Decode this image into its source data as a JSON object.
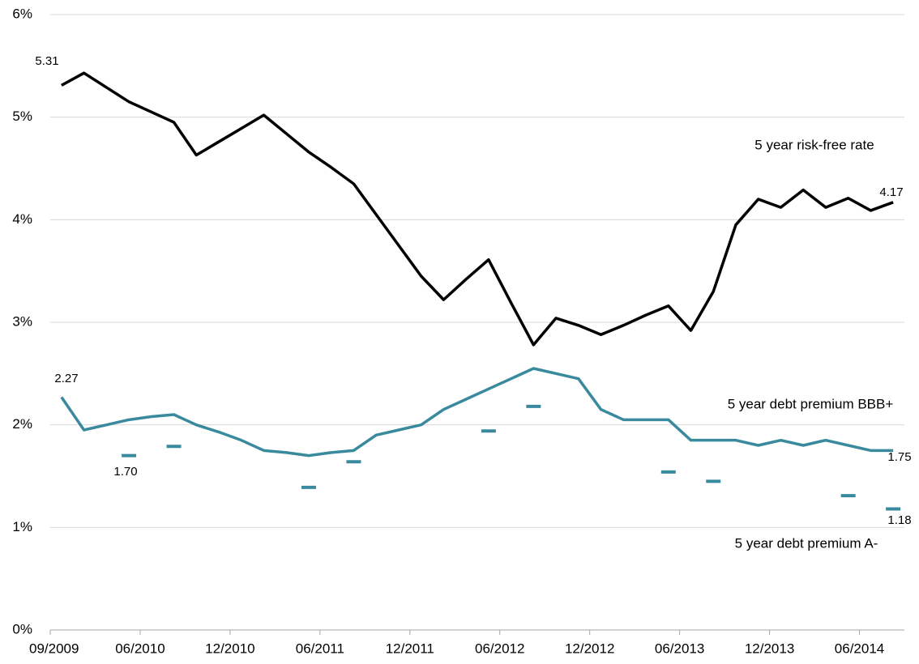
{
  "chart_data": {
    "type": "line",
    "categories": [
      "09/2009",
      null,
      null,
      null,
      "06/2010",
      null,
      null,
      null,
      "12/2010",
      null,
      null,
      null,
      "06/2011",
      null,
      null,
      null,
      "12/2011",
      null,
      null,
      null,
      "06/2012",
      null,
      null,
      null,
      "12/2012",
      null,
      null,
      null,
      "06/2013",
      null,
      null,
      null,
      "12/2013",
      null,
      null,
      null,
      "06/2014",
      null
    ],
    "series": [
      {
        "name": "5 year risk-free rate",
        "color": "#000000",
        "values": [
          5.31,
          5.43,
          5.29,
          5.15,
          5.05,
          4.95,
          4.63,
          4.76,
          4.89,
          5.02,
          4.84,
          4.66,
          4.51,
          4.35,
          4.05,
          3.75,
          3.45,
          3.22,
          3.42,
          3.61,
          3.19,
          2.78,
          3.04,
          2.97,
          2.88,
          2.97,
          3.07,
          3.16,
          2.92,
          3.3,
          3.95,
          4.2,
          4.12,
          4.29,
          4.12,
          4.21,
          4.09,
          4.17
        ],
        "value_labels": [
          "5.31",
          null,
          null,
          null,
          null,
          null,
          null,
          null,
          null,
          null,
          null,
          null,
          null,
          null,
          null,
          null,
          null,
          null,
          null,
          null,
          null,
          null,
          null,
          null,
          null,
          null,
          null,
          null,
          null,
          null,
          null,
          null,
          null,
          null,
          null,
          null,
          null,
          "4.17"
        ]
      },
      {
        "name": "5 year debt premium BBB+",
        "color": "#3a8a9e",
        "values": [
          2.27,
          1.95,
          2.0,
          2.05,
          2.08,
          2.1,
          2.0,
          1.93,
          1.85,
          1.75,
          1.73,
          1.7,
          1.73,
          1.75,
          1.9,
          1.95,
          2.0,
          2.15,
          2.25,
          2.35,
          2.45,
          2.55,
          2.5,
          2.45,
          2.15,
          2.05,
          2.05,
          2.05,
          1.85,
          1.85,
          1.85,
          1.8,
          1.85,
          1.8,
          1.85,
          1.8,
          1.75,
          1.75
        ],
        "value_labels": [
          "2.27",
          null,
          null,
          null,
          null,
          null,
          null,
          null,
          null,
          null,
          null,
          null,
          null,
          null,
          null,
          null,
          null,
          null,
          null,
          null,
          null,
          null,
          null,
          null,
          null,
          null,
          null,
          null,
          null,
          null,
          null,
          null,
          null,
          null,
          null,
          null,
          null,
          "1.75"
        ]
      },
      {
        "name": "5 year debt premium A-",
        "color": "#3a8a9e",
        "marker": "dash",
        "line": false,
        "values": [
          null,
          null,
          null,
          1.7,
          null,
          1.79,
          null,
          null,
          null,
          null,
          null,
          1.39,
          null,
          1.64,
          null,
          null,
          null,
          null,
          null,
          1.94,
          null,
          2.18,
          null,
          null,
          null,
          null,
          null,
          1.54,
          null,
          1.45,
          null,
          null,
          null,
          null,
          null,
          1.31,
          null,
          1.18
        ],
        "value_labels": [
          null,
          null,
          null,
          "1.70",
          null,
          null,
          null,
          null,
          null,
          null,
          null,
          null,
          null,
          null,
          null,
          null,
          null,
          null,
          null,
          null,
          null,
          null,
          null,
          null,
          null,
          null,
          null,
          null,
          null,
          null,
          null,
          null,
          null,
          null,
          null,
          null,
          null,
          "1.18"
        ]
      }
    ],
    "ylim": [
      0,
      6
    ],
    "yticks": [
      {
        "value": 0,
        "label": "0%"
      },
      {
        "value": 1,
        "label": "1%"
      },
      {
        "value": 2,
        "label": "2%"
      },
      {
        "value": 3,
        "label": "3%"
      },
      {
        "value": 4,
        "label": "4%"
      },
      {
        "value": 5,
        "label": "5%"
      },
      {
        "value": 6,
        "label": "6%"
      }
    ],
    "grid": true
  }
}
